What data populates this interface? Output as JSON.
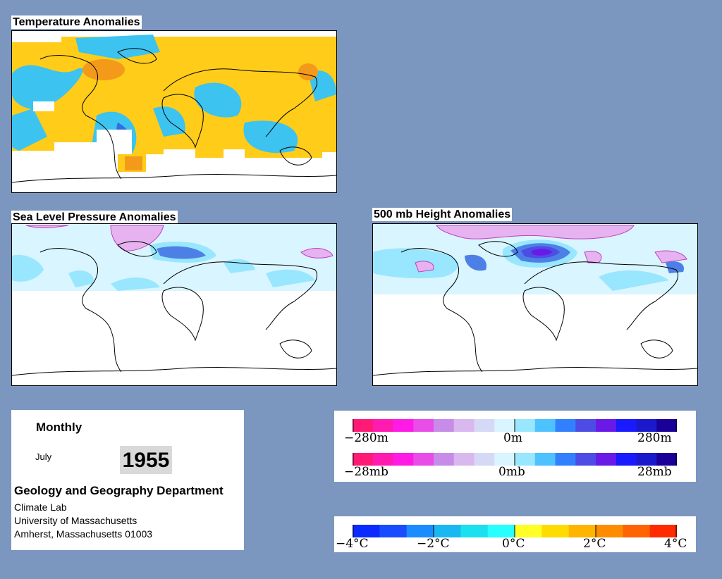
{
  "maps": {
    "temperature": {
      "title": "Temperature Anomalies"
    },
    "slp": {
      "title": "Sea Level Pressure Anomalies"
    },
    "height500": {
      "title": "500 mb Height Anomalies"
    }
  },
  "info": {
    "mode": "Monthly",
    "month": "July",
    "year": "1955",
    "department": "Geology and Geography Department",
    "lab": "Climate Lab",
    "university": "University of Massachusetts",
    "address": "Amherst, Massachusetts 01003"
  },
  "legend_height": {
    "min_label": "−280m",
    "mid_label": "0m",
    "max_label": "280m",
    "colors": [
      "#ff1a75",
      "#ff1ab0",
      "#ff1ae6",
      "#e84de8",
      "#c78ce8",
      "#d9b8f0",
      "#d6d9f5",
      "#d9f5ff",
      "#99e6ff",
      "#4dc2ff",
      "#3380ff",
      "#4d4de6",
      "#6a1ae6",
      "#1a1aff",
      "#1a1acc",
      "#1a0099"
    ]
  },
  "legend_pressure": {
    "min_label": "−28mb",
    "mid_label": "0mb",
    "max_label": "28mb",
    "colors": [
      "#ff1a75",
      "#ff1ab0",
      "#ff1ae6",
      "#e84de8",
      "#c78ce8",
      "#d9b8f0",
      "#d6d9f5",
      "#d9f5ff",
      "#99e6ff",
      "#4dc2ff",
      "#3380ff",
      "#4d4de6",
      "#6a1ae6",
      "#1a1aff",
      "#1a1acc",
      "#1a0099"
    ]
  },
  "legend_temperature": {
    "labels": [
      "−4°C",
      "−2°C",
      "0°C",
      "2°C",
      "4°C"
    ],
    "colors": [
      "#0a2aff",
      "#1a4cff",
      "#1a8cff",
      "#1ab8f0",
      "#1ae0f0",
      "#26ffff",
      "#ffff26",
      "#ffdc00",
      "#ffb400",
      "#ff8c00",
      "#ff6400",
      "#ff2a00"
    ]
  }
}
